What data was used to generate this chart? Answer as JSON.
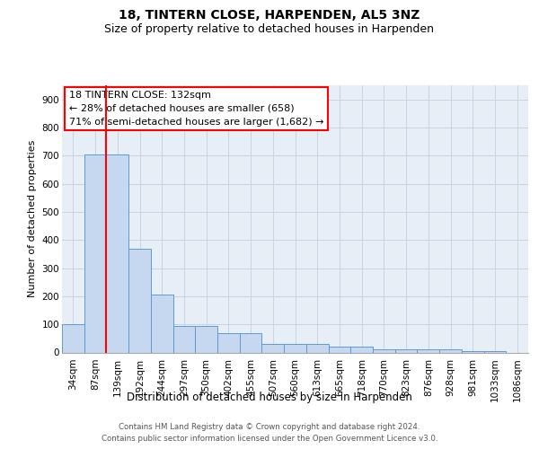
{
  "title1": "18, TINTERN CLOSE, HARPENDEN, AL5 3NZ",
  "title2": "Size of property relative to detached houses in Harpenden",
  "xlabel": "Distribution of detached houses by size in Harpenden",
  "ylabel": "Number of detached properties",
  "bar_labels": [
    "34sqm",
    "87sqm",
    "139sqm",
    "192sqm",
    "244sqm",
    "297sqm",
    "350sqm",
    "402sqm",
    "455sqm",
    "507sqm",
    "560sqm",
    "613sqm",
    "665sqm",
    "718sqm",
    "770sqm",
    "823sqm",
    "876sqm",
    "928sqm",
    "981sqm",
    "1033sqm",
    "1086sqm"
  ],
  "bar_values": [
    100,
    705,
    705,
    370,
    205,
    95,
    95,
    70,
    70,
    30,
    30,
    30,
    20,
    20,
    10,
    10,
    10,
    10,
    5,
    5,
    0
  ],
  "bar_color": "#c5d8f0",
  "bar_edge_color": "#5b9bd5",
  "property_line_x": 1.5,
  "annotation_text": "18 TINTERN CLOSE: 132sqm\n← 28% of detached houses are smaller (658)\n71% of semi-detached houses are larger (1,682) →",
  "property_line_color": "red",
  "annotation_box_edge_color": "red",
  "ylim": [
    0,
    950
  ],
  "yticks": [
    0,
    100,
    200,
    300,
    400,
    500,
    600,
    700,
    800,
    900
  ],
  "grid_color": "#c8d4e4",
  "background_color": "#e8eef5",
  "footnote1": "Contains HM Land Registry data © Crown copyright and database right 2024.",
  "footnote2": "Contains public sector information licensed under the Open Government Licence v3.0.",
  "title1_fontsize": 10,
  "title2_fontsize": 9,
  "xlabel_fontsize": 8.5,
  "ylabel_fontsize": 8,
  "tick_fontsize": 7.5,
  "annotation_fontsize": 8
}
